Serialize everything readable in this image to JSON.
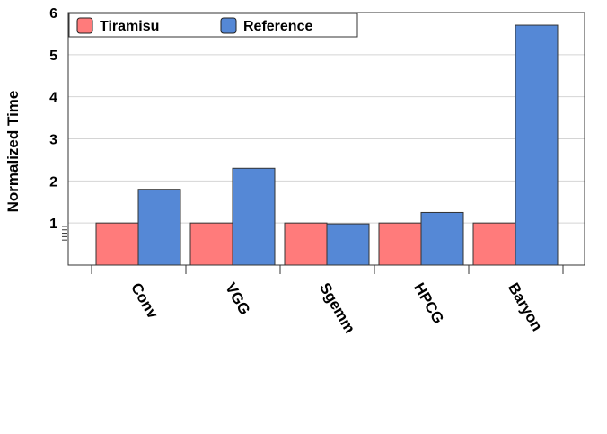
{
  "chart_data": {
    "type": "bar",
    "title": "",
    "xlabel": "",
    "ylabel": "Normalized Time",
    "ylim": [
      0,
      6
    ],
    "yticks": [
      "1",
      "2",
      "3",
      "4",
      "5",
      "6"
    ],
    "categories": [
      "Conv",
      "VGG",
      "Sgemm",
      "HPCG",
      "Baryon"
    ],
    "series": [
      {
        "name": "Tiramisu",
        "color": "#ff7b7b",
        "values": [
          1.0,
          1.0,
          1.0,
          1.0,
          1.0
        ]
      },
      {
        "name": "Reference",
        "color": "#5588d6",
        "values": [
          1.8,
          2.3,
          0.98,
          1.25,
          5.7
        ]
      }
    ],
    "grid": true,
    "legend": "top-left"
  }
}
